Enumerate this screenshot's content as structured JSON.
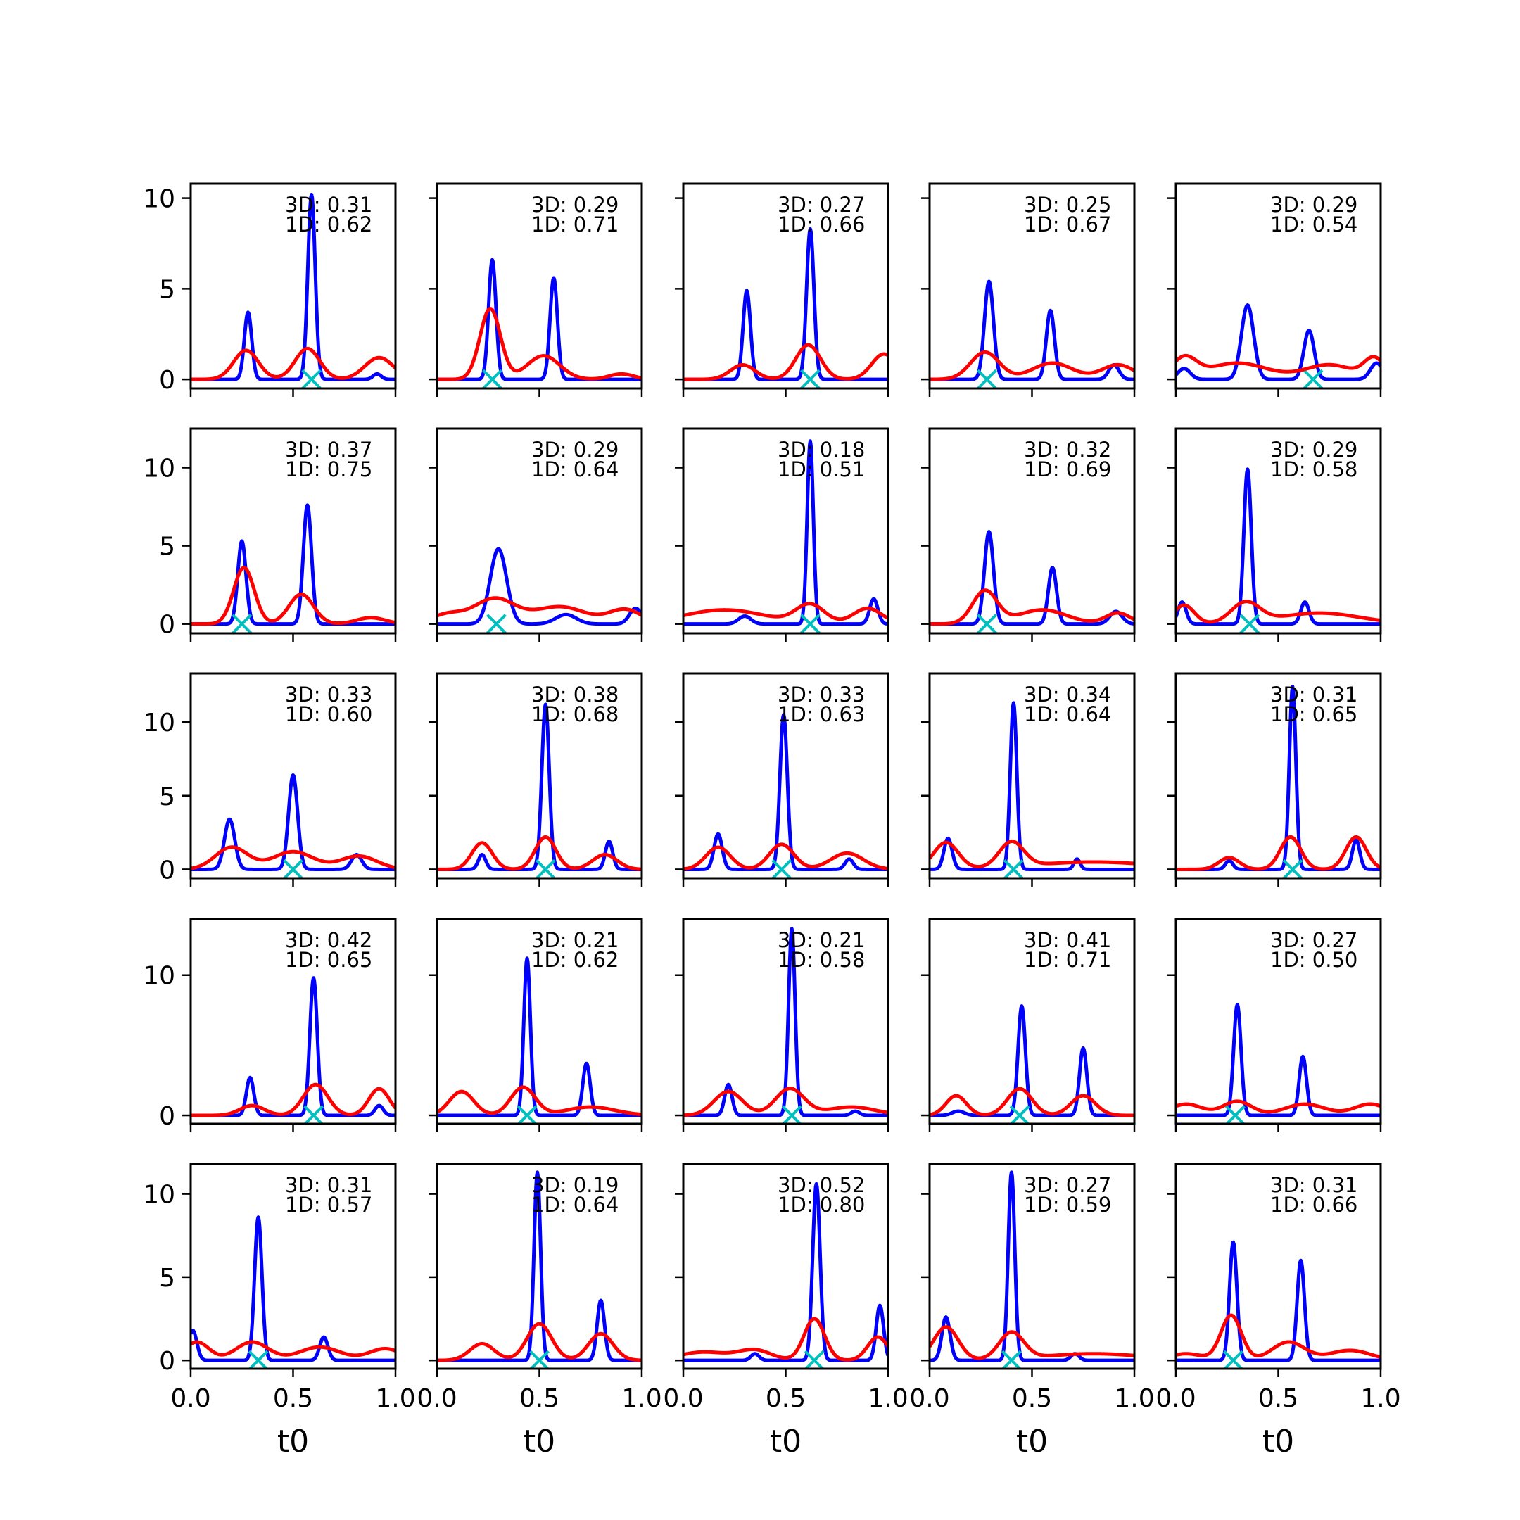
{
  "figure": {
    "rows": 5,
    "cols": 5,
    "xlabel": "t0",
    "xticks": [
      "0.0",
      "0.5",
      "1.0"
    ],
    "colors": {
      "blue": "#0000ff",
      "red": "#ff0000",
      "cyan": "#00bfbf",
      "axes": "#000000"
    }
  },
  "chart_data": [
    {
      "type": "line",
      "row": 0,
      "col": 0,
      "ann3d": "3D: 0.31",
      "ann1d": "1D: 0.62",
      "xlim": [
        0,
        1
      ],
      "ylim": [
        -0.5,
        10.8
      ],
      "yticks": [
        "0",
        "5",
        "10"
      ],
      "blue": [
        [
          0.28,
          3.7,
          0.018
        ],
        [
          0.59,
          10.2,
          0.018
        ],
        [
          0.91,
          0.3,
          0.02
        ]
      ],
      "red": [
        [
          0.27,
          1.6,
          0.06
        ],
        [
          0.57,
          1.7,
          0.06
        ],
        [
          0.92,
          1.2,
          0.07
        ]
      ],
      "marker": 0.59
    },
    {
      "type": "line",
      "row": 0,
      "col": 1,
      "ann3d": "3D: 0.29",
      "ann1d": "1D: 0.71",
      "xlim": [
        0,
        1
      ],
      "ylim": [
        -0.5,
        10.8
      ],
      "yticks": [],
      "blue": [
        [
          0.27,
          6.6,
          0.018
        ],
        [
          0.57,
          5.6,
          0.018
        ]
      ],
      "red": [
        [
          0.26,
          3.9,
          0.05
        ],
        [
          0.52,
          1.3,
          0.08
        ],
        [
          0.9,
          0.3,
          0.06
        ]
      ],
      "marker": 0.27
    },
    {
      "type": "line",
      "row": 0,
      "col": 2,
      "ann3d": "3D: 0.27",
      "ann1d": "1D: 0.66",
      "xlim": [
        0,
        1
      ],
      "ylim": [
        -0.5,
        10.8
      ],
      "yticks": [],
      "blue": [
        [
          0.31,
          4.9,
          0.018
        ],
        [
          0.62,
          8.3,
          0.018
        ]
      ],
      "red": [
        [
          0.29,
          0.8,
          0.06
        ],
        [
          0.61,
          1.9,
          0.06
        ],
        [
          0.98,
          1.4,
          0.06
        ]
      ],
      "marker": 0.62
    },
    {
      "type": "line",
      "row": 0,
      "col": 3,
      "ann3d": "3D: 0.25",
      "ann1d": "1D: 0.67",
      "xlim": [
        0,
        1
      ],
      "ylim": [
        -0.5,
        10.8
      ],
      "yticks": [],
      "blue": [
        [
          0.29,
          5.4,
          0.022
        ],
        [
          0.59,
          3.8,
          0.02
        ],
        [
          0.9,
          0.8,
          0.025
        ]
      ],
      "red": [
        [
          0.27,
          1.5,
          0.07
        ],
        [
          0.6,
          0.9,
          0.1
        ],
        [
          0.92,
          0.8,
          0.08
        ]
      ],
      "marker": 0.28
    },
    {
      "type": "line",
      "row": 0,
      "col": 4,
      "ann3d": "3D: 0.29",
      "ann1d": "1D: 0.54",
      "xlim": [
        0,
        1
      ],
      "ylim": [
        -0.5,
        10.8
      ],
      "yticks": [],
      "blue": [
        [
          0.04,
          0.6,
          0.03
        ],
        [
          0.35,
          4.1,
          0.03
        ],
        [
          0.65,
          2.7,
          0.025
        ],
        [
          0.98,
          0.9,
          0.03
        ]
      ],
      "red": [
        [
          0.04,
          1.1,
          0.06
        ],
        [
          0.3,
          0.9,
          0.15
        ],
        [
          0.75,
          0.8,
          0.12
        ],
        [
          0.97,
          1.1,
          0.05
        ]
      ],
      "marker": 0.67
    },
    {
      "type": "line",
      "row": 1,
      "col": 0,
      "ann3d": "3D: 0.37",
      "ann1d": "1D: 0.75",
      "xlim": [
        0,
        1
      ],
      "ylim": [
        -0.6,
        12.5
      ],
      "yticks": [
        "0",
        "5",
        "10"
      ],
      "blue": [
        [
          0.25,
          5.3,
          0.02
        ],
        [
          0.57,
          7.6,
          0.02
        ]
      ],
      "red": [
        [
          0.26,
          3.6,
          0.05
        ],
        [
          0.54,
          1.9,
          0.06
        ],
        [
          0.88,
          0.4,
          0.07
        ]
      ],
      "marker": 0.25
    },
    {
      "type": "line",
      "row": 1,
      "col": 1,
      "ann3d": "3D: 0.29",
      "ann1d": "1D: 0.64",
      "xlim": [
        0,
        1
      ],
      "ylim": [
        -0.6,
        12.5
      ],
      "yticks": [],
      "blue": [
        [
          0.3,
          4.8,
          0.04
        ],
        [
          0.63,
          0.6,
          0.05
        ],
        [
          0.97,
          1.0,
          0.03
        ]
      ],
      "red": [
        [
          0.05,
          0.6,
          0.08
        ],
        [
          0.28,
          1.6,
          0.1
        ],
        [
          0.6,
          1.1,
          0.13
        ],
        [
          0.92,
          0.9,
          0.08
        ]
      ],
      "marker": 0.29
    },
    {
      "type": "line",
      "row": 1,
      "col": 2,
      "ann3d": "3D: 0.18",
      "ann1d": "1D: 0.51",
      "xlim": [
        0,
        1
      ],
      "ylim": [
        -0.6,
        12.5
      ],
      "yticks": [],
      "blue": [
        [
          0.3,
          0.5,
          0.03
        ],
        [
          0.62,
          11.7,
          0.015
        ],
        [
          0.93,
          1.6,
          0.02
        ]
      ],
      "red": [
        [
          0.2,
          0.9,
          0.2
        ],
        [
          0.62,
          1.2,
          0.07
        ],
        [
          0.9,
          1.0,
          0.07
        ]
      ],
      "marker": 0.62
    },
    {
      "type": "line",
      "row": 1,
      "col": 3,
      "ann3d": "3D: 0.32",
      "ann1d": "1D: 0.69",
      "xlim": [
        0,
        1
      ],
      "ylim": [
        -0.6,
        12.5
      ],
      "yticks": [],
      "blue": [
        [
          0.29,
          5.9,
          0.022
        ],
        [
          0.6,
          3.6,
          0.02
        ],
        [
          0.91,
          0.8,
          0.03
        ]
      ],
      "red": [
        [
          0.27,
          2.1,
          0.06
        ],
        [
          0.55,
          0.9,
          0.12
        ],
        [
          0.92,
          0.7,
          0.06
        ]
      ],
      "marker": 0.28
    },
    {
      "type": "line",
      "row": 1,
      "col": 4,
      "ann3d": "3D: 0.29",
      "ann1d": "1D: 0.58",
      "xlim": [
        0,
        1
      ],
      "ylim": [
        -0.6,
        12.5
      ],
      "yticks": [],
      "blue": [
        [
          0.03,
          1.4,
          0.02
        ],
        [
          0.35,
          9.9,
          0.018
        ],
        [
          0.63,
          1.4,
          0.02
        ]
      ],
      "red": [
        [
          0.04,
          1.2,
          0.05
        ],
        [
          0.34,
          1.3,
          0.07
        ],
        [
          0.7,
          0.7,
          0.2
        ]
      ],
      "marker": 0.36
    },
    {
      "type": "line",
      "row": 2,
      "col": 0,
      "ann3d": "3D: 0.33",
      "ann1d": "1D: 0.60",
      "xlim": [
        0,
        1
      ],
      "ylim": [
        -0.6,
        13.3
      ],
      "yticks": [
        "0",
        "5",
        "10"
      ],
      "blue": [
        [
          0.19,
          3.4,
          0.025
        ],
        [
          0.5,
          6.4,
          0.022
        ],
        [
          0.81,
          1.0,
          0.025
        ]
      ],
      "red": [
        [
          0.2,
          1.5,
          0.08
        ],
        [
          0.5,
          1.2,
          0.1
        ],
        [
          0.82,
          0.9,
          0.09
        ]
      ],
      "marker": 0.5
    },
    {
      "type": "line",
      "row": 2,
      "col": 1,
      "ann3d": "3D: 0.38",
      "ann1d": "1D: 0.68",
      "xlim": [
        0,
        1
      ],
      "ylim": [
        -0.6,
        13.3
      ],
      "yticks": [],
      "blue": [
        [
          0.22,
          1.0,
          0.018
        ],
        [
          0.53,
          11.2,
          0.018
        ],
        [
          0.84,
          1.9,
          0.018
        ]
      ],
      "red": [
        [
          0.22,
          1.8,
          0.05
        ],
        [
          0.53,
          2.2,
          0.05
        ],
        [
          0.82,
          1.0,
          0.06
        ]
      ],
      "marker": 0.53
    },
    {
      "type": "line",
      "row": 2,
      "col": 2,
      "ann3d": "3D: 0.33",
      "ann1d": "1D: 0.63",
      "xlim": [
        0,
        1
      ],
      "ylim": [
        -0.6,
        13.3
      ],
      "yticks": [],
      "blue": [
        [
          0.17,
          2.4,
          0.02
        ],
        [
          0.49,
          10.5,
          0.018
        ],
        [
          0.81,
          0.7,
          0.02
        ]
      ],
      "red": [
        [
          0.17,
          1.5,
          0.06
        ],
        [
          0.48,
          1.7,
          0.06
        ],
        [
          0.8,
          1.1,
          0.08
        ]
      ],
      "marker": 0.48
    },
    {
      "type": "line",
      "row": 2,
      "col": 3,
      "ann3d": "3D: 0.34",
      "ann1d": "1D: 0.64",
      "xlim": [
        0,
        1
      ],
      "ylim": [
        -0.6,
        13.3
      ],
      "yticks": [],
      "blue": [
        [
          0.09,
          2.1,
          0.02
        ],
        [
          0.41,
          11.3,
          0.016
        ],
        [
          0.72,
          0.7,
          0.015
        ]
      ],
      "red": [
        [
          0.08,
          1.8,
          0.06
        ],
        [
          0.4,
          1.7,
          0.06
        ],
        [
          0.8,
          0.5,
          0.3
        ]
      ],
      "marker": 0.41
    },
    {
      "type": "line",
      "row": 2,
      "col": 4,
      "ann3d": "3D: 0.31",
      "ann1d": "1D: 0.65",
      "xlim": [
        0,
        1
      ],
      "ylim": [
        -0.6,
        13.3
      ],
      "yticks": [],
      "blue": [
        [
          0.26,
          0.6,
          0.018
        ],
        [
          0.57,
          12.4,
          0.016
        ],
        [
          0.88,
          2.0,
          0.018
        ]
      ],
      "red": [
        [
          0.26,
          0.8,
          0.05
        ],
        [
          0.56,
          2.2,
          0.05
        ],
        [
          0.88,
          2.2,
          0.05
        ]
      ],
      "marker": 0.57
    },
    {
      "type": "line",
      "row": 3,
      "col": 0,
      "ann3d": "3D: 0.42",
      "ann1d": "1D: 0.65",
      "xlim": [
        0,
        1
      ],
      "ylim": [
        -0.6,
        14.0
      ],
      "yticks": [
        "0",
        "10"
      ],
      "blue": [
        [
          0.29,
          2.7,
          0.018
        ],
        [
          0.6,
          9.8,
          0.018
        ],
        [
          0.92,
          0.7,
          0.02
        ]
      ],
      "red": [
        [
          0.3,
          0.7,
          0.06
        ],
        [
          0.61,
          2.2,
          0.06
        ],
        [
          0.92,
          1.9,
          0.05
        ]
      ],
      "marker": 0.6
    },
    {
      "type": "line",
      "row": 3,
      "col": 1,
      "ann3d": "3D: 0.21",
      "ann1d": "1D: 0.62",
      "xlim": [
        0,
        1
      ],
      "ylim": [
        -0.6,
        14.0
      ],
      "yticks": [],
      "blue": [
        [
          0.44,
          11.2,
          0.016
        ],
        [
          0.73,
          3.7,
          0.018
        ]
      ],
      "red": [
        [
          0.12,
          1.7,
          0.06
        ],
        [
          0.42,
          2.0,
          0.06
        ],
        [
          0.75,
          0.6,
          0.12
        ]
      ],
      "marker": 0.44
    },
    {
      "type": "line",
      "row": 3,
      "col": 2,
      "ann3d": "3D: 0.21",
      "ann1d": "1D: 0.58",
      "xlim": [
        0,
        1
      ],
      "ylim": [
        -0.6,
        14.0
      ],
      "yticks": [],
      "blue": [
        [
          0.22,
          2.2,
          0.018
        ],
        [
          0.53,
          13.3,
          0.016
        ],
        [
          0.84,
          0.3,
          0.02
        ]
      ],
      "red": [
        [
          0.22,
          1.7,
          0.07
        ],
        [
          0.52,
          1.9,
          0.07
        ],
        [
          0.82,
          0.6,
          0.12
        ]
      ],
      "marker": 0.53
    },
    {
      "type": "line",
      "row": 3,
      "col": 3,
      "ann3d": "3D: 0.41",
      "ann1d": "1D: 0.71",
      "xlim": [
        0,
        1
      ],
      "ylim": [
        -0.6,
        14.0
      ],
      "yticks": [],
      "blue": [
        [
          0.14,
          0.3,
          0.03
        ],
        [
          0.45,
          7.8,
          0.018
        ],
        [
          0.75,
          4.8,
          0.018
        ]
      ],
      "red": [
        [
          0.13,
          1.4,
          0.05
        ],
        [
          0.44,
          1.9,
          0.06
        ],
        [
          0.75,
          1.4,
          0.06
        ]
      ],
      "marker": 0.44
    },
    {
      "type": "line",
      "row": 3,
      "col": 4,
      "ann3d": "3D: 0.27",
      "ann1d": "1D: 0.50",
      "xlim": [
        0,
        1
      ],
      "ylim": [
        -0.6,
        14.0
      ],
      "yticks": [],
      "blue": [
        [
          0.3,
          7.9,
          0.018
        ],
        [
          0.62,
          4.2,
          0.018
        ]
      ],
      "red": [
        [
          0.05,
          0.8,
          0.08
        ],
        [
          0.3,
          1.0,
          0.07
        ],
        [
          0.63,
          0.8,
          0.1
        ],
        [
          0.95,
          0.8,
          0.08
        ]
      ],
      "marker": 0.29
    },
    {
      "type": "line",
      "row": 4,
      "col": 0,
      "ann3d": "3D: 0.31",
      "ann1d": "1D: 0.57",
      "xlim": [
        0,
        1
      ],
      "ylim": [
        -0.5,
        11.8
      ],
      "yticks": [
        "0",
        "5",
        "10"
      ],
      "blue": [
        [
          0.01,
          1.8,
          0.02
        ],
        [
          0.33,
          8.6,
          0.018
        ],
        [
          0.65,
          1.4,
          0.02
        ]
      ],
      "red": [
        [
          0.03,
          1.1,
          0.06
        ],
        [
          0.3,
          1.1,
          0.08
        ],
        [
          0.63,
          0.8,
          0.1
        ],
        [
          0.95,
          0.7,
          0.08
        ]
      ],
      "marker": 0.33
    },
    {
      "type": "line",
      "row": 4,
      "col": 1,
      "ann3d": "3D: 0.19",
      "ann1d": "1D: 0.64",
      "xlim": [
        0,
        1
      ],
      "ylim": [
        -0.5,
        11.8
      ],
      "yticks": [],
      "blue": [
        [
          0.49,
          11.3,
          0.016
        ],
        [
          0.8,
          3.6,
          0.018
        ]
      ],
      "red": [
        [
          0.22,
          1.0,
          0.06
        ],
        [
          0.5,
          2.2,
          0.06
        ],
        [
          0.8,
          1.6,
          0.06
        ]
      ],
      "marker": 0.5
    },
    {
      "type": "line",
      "row": 4,
      "col": 2,
      "ann3d": "3D: 0.52",
      "ann1d": "1D: 0.80",
      "xlim": [
        0,
        1
      ],
      "ylim": [
        -0.5,
        11.8
      ],
      "yticks": [],
      "blue": [
        [
          0.35,
          0.4,
          0.02
        ],
        [
          0.65,
          10.6,
          0.018
        ],
        [
          0.96,
          3.3,
          0.018
        ]
      ],
      "red": [
        [
          0.1,
          0.5,
          0.12
        ],
        [
          0.35,
          0.6,
          0.08
        ],
        [
          0.64,
          2.5,
          0.05
        ],
        [
          0.95,
          1.4,
          0.05
        ]
      ],
      "marker": 0.64
    },
    {
      "type": "line",
      "row": 4,
      "col": 3,
      "ann3d": "3D: 0.27",
      "ann1d": "1D: 0.59",
      "xlim": [
        0,
        1
      ],
      "ylim": [
        -0.5,
        11.8
      ],
      "yticks": [],
      "blue": [
        [
          0.08,
          2.6,
          0.02
        ],
        [
          0.4,
          11.3,
          0.016
        ],
        [
          0.71,
          0.4,
          0.02
        ]
      ],
      "red": [
        [
          0.08,
          2.0,
          0.06
        ],
        [
          0.4,
          1.6,
          0.06
        ],
        [
          0.8,
          0.4,
          0.25
        ]
      ],
      "marker": 0.4
    },
    {
      "type": "line",
      "row": 4,
      "col": 4,
      "ann3d": "3D: 0.31",
      "ann1d": "1D: 0.66",
      "xlim": [
        0,
        1
      ],
      "ylim": [
        -0.5,
        11.8
      ],
      "yticks": [],
      "blue": [
        [
          0.28,
          7.1,
          0.018
        ],
        [
          0.61,
          6.0,
          0.018
        ]
      ],
      "red": [
        [
          0.05,
          0.4,
          0.08
        ],
        [
          0.27,
          2.7,
          0.05
        ],
        [
          0.55,
          1.1,
          0.08
        ],
        [
          0.85,
          0.6,
          0.1
        ]
      ],
      "marker": 0.28
    }
  ]
}
